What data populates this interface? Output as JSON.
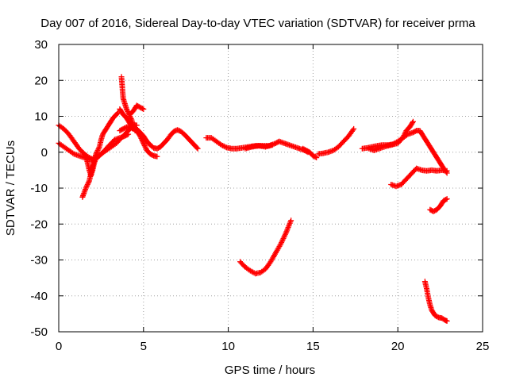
{
  "chart_data": {
    "type": "scatter",
    "title": "Day 007 of 2016, Sidereal Day-to-day VTEC variation (SDTVAR) for receiver prma",
    "xlabel": "GPS time / hours",
    "ylabel": "SDTVAR / TECUs",
    "xlim": [
      0,
      25
    ],
    "ylim": [
      -50,
      30
    ],
    "xticks": [
      "0",
      "5",
      "10",
      "15",
      "20",
      "25"
    ],
    "yticks": [
      "30",
      "20",
      "10",
      "0",
      "-10",
      "-20",
      "-30",
      "-40",
      "-50"
    ],
    "grid": true,
    "marker": "+",
    "color": "#ff0000",
    "series": [
      {
        "points": [
          [
            0.0,
            7.5
          ],
          [
            0.3,
            6.5
          ],
          [
            0.6,
            5.0
          ],
          [
            0.9,
            3.0
          ],
          [
            1.2,
            1.0
          ],
          [
            1.5,
            -0.5
          ],
          [
            1.8,
            -1.5
          ],
          [
            2.0,
            -2.0
          ],
          [
            2.2,
            -1.5
          ],
          [
            2.5,
            -0.5
          ],
          [
            2.8,
            0.5
          ],
          [
            3.1,
            1.5
          ],
          [
            3.4,
            2.5
          ],
          [
            3.7,
            4.0
          ],
          [
            4.0,
            5.5
          ],
          [
            4.2,
            6.5
          ],
          [
            4.4,
            7.5
          ],
          [
            4.6,
            7.5
          ]
        ]
      },
      {
        "points": [
          [
            0.0,
            2.5
          ],
          [
            0.3,
            1.5
          ],
          [
            0.6,
            0.5
          ],
          [
            0.9,
            -0.5
          ],
          [
            1.2,
            -1.0
          ],
          [
            1.5,
            -1.5
          ],
          [
            1.8,
            -2.0
          ],
          [
            2.1,
            -2.2
          ],
          [
            2.4,
            -1.0
          ],
          [
            2.7,
            0.5
          ],
          [
            3.0,
            2.0
          ],
          [
            3.3,
            3.5
          ],
          [
            3.6,
            4.0
          ],
          [
            3.9,
            4.5
          ],
          [
            4.1,
            5.0
          ]
        ]
      },
      {
        "points": [
          [
            1.4,
            0.0
          ],
          [
            1.6,
            -1.0
          ],
          [
            1.7,
            -3.0
          ],
          [
            1.8,
            -5.0
          ],
          [
            1.9,
            -6.5
          ],
          [
            2.0,
            -5.0
          ],
          [
            2.1,
            -3.0
          ],
          [
            2.2,
            -1.5
          ]
        ]
      },
      {
        "points": [
          [
            1.4,
            -12.5
          ],
          [
            1.6,
            -10.0
          ],
          [
            1.8,
            -8.0
          ],
          [
            1.9,
            -6.0
          ],
          [
            2.0,
            -4.0
          ],
          [
            2.1,
            -2.0
          ],
          [
            2.2,
            -0.5
          ]
        ]
      },
      {
        "points": [
          [
            2.2,
            -0.5
          ],
          [
            2.4,
            1.5
          ],
          [
            2.5,
            3.5
          ],
          [
            2.6,
            5.0
          ],
          [
            2.8,
            6.5
          ],
          [
            3.0,
            8.0
          ],
          [
            3.2,
            9.5
          ],
          [
            3.4,
            10.5
          ],
          [
            3.5,
            11.0
          ]
        ]
      },
      {
        "points": [
          [
            3.7,
            21.0
          ],
          [
            3.75,
            18.0
          ],
          [
            3.8,
            15.0
          ],
          [
            3.9,
            13.5
          ],
          [
            4.0,
            12.0
          ],
          [
            4.1,
            11.0
          ],
          [
            4.2,
            10.0
          ],
          [
            4.3,
            9.0
          ],
          [
            4.4,
            7.5
          ],
          [
            4.5,
            6.0
          ]
        ]
      },
      {
        "points": [
          [
            3.6,
            12.0
          ],
          [
            3.8,
            10.5
          ],
          [
            4.0,
            9.5
          ],
          [
            4.2,
            8.0
          ],
          [
            4.4,
            6.5
          ]
        ]
      },
      {
        "points": [
          [
            4.2,
            10.5
          ],
          [
            4.4,
            11.5
          ],
          [
            4.6,
            13.0
          ],
          [
            4.8,
            12.5
          ],
          [
            5.0,
            12.0
          ]
        ]
      },
      {
        "points": [
          [
            3.6,
            6.0
          ],
          [
            3.8,
            6.5
          ],
          [
            4.0,
            7.0
          ],
          [
            4.2,
            7.0
          ],
          [
            4.4,
            6.5
          ],
          [
            4.6,
            6.0
          ],
          [
            4.8,
            4.5
          ],
          [
            5.0,
            2.5
          ],
          [
            5.2,
            0.5
          ],
          [
            5.4,
            -0.5
          ],
          [
            5.6,
            -1.0
          ],
          [
            5.8,
            -1.2
          ]
        ]
      },
      {
        "points": [
          [
            4.6,
            6.5
          ],
          [
            4.8,
            5.5
          ],
          [
            5.0,
            4.5
          ],
          [
            5.2,
            3.0
          ],
          [
            5.4,
            2.0
          ],
          [
            5.6,
            1.2
          ],
          [
            5.8,
            1.0
          ],
          [
            6.0,
            1.5
          ],
          [
            6.2,
            2.5
          ],
          [
            6.4,
            3.5
          ],
          [
            6.6,
            4.8
          ],
          [
            6.8,
            5.8
          ],
          [
            7.0,
            6.2
          ],
          [
            7.2,
            5.8
          ],
          [
            7.4,
            5.0
          ],
          [
            7.6,
            4.0
          ],
          [
            7.8,
            3.0
          ],
          [
            8.0,
            2.0
          ],
          [
            8.2,
            1.0
          ]
        ]
      },
      {
        "points": [
          [
            8.7,
            4.0
          ],
          [
            9.0,
            4.0
          ],
          [
            9.3,
            3.0
          ],
          [
            9.6,
            2.0
          ],
          [
            9.9,
            1.3
          ],
          [
            10.2,
            1.0
          ],
          [
            10.5,
            1.0
          ],
          [
            10.8,
            1.2
          ],
          [
            11.2,
            1.5
          ],
          [
            11.6,
            1.8
          ],
          [
            12.0,
            1.8
          ],
          [
            12.4,
            1.8
          ],
          [
            12.8,
            2.5
          ],
          [
            13.0,
            3.0
          ],
          [
            13.3,
            2.5
          ],
          [
            13.6,
            2.0
          ],
          [
            13.9,
            1.5
          ],
          [
            14.2,
            1.0
          ],
          [
            14.5,
            0.5
          ],
          [
            14.7,
            0.0
          ]
        ]
      },
      {
        "points": [
          [
            11.0,
            1.0
          ],
          [
            11.4,
            1.5
          ],
          [
            11.8,
            1.8
          ],
          [
            12.2,
            1.5
          ],
          [
            12.6,
            2.0
          ]
        ]
      },
      {
        "points": [
          [
            14.4,
            1.0
          ],
          [
            14.6,
            0.5
          ],
          [
            14.8,
            0.0
          ],
          [
            15.0,
            -1.0
          ],
          [
            15.2,
            -1.5
          ]
        ]
      },
      {
        "points": [
          [
            15.3,
            -0.5
          ],
          [
            15.6,
            -0.3
          ],
          [
            15.9,
            0.0
          ],
          [
            16.2,
            0.5
          ],
          [
            16.5,
            1.5
          ],
          [
            16.8,
            3.0
          ],
          [
            17.1,
            4.5
          ],
          [
            17.4,
            6.5
          ]
        ]
      },
      {
        "points": [
          [
            10.7,
            -30.5
          ],
          [
            11.0,
            -32.0
          ],
          [
            11.3,
            -33.0
          ],
          [
            11.6,
            -33.8
          ],
          [
            11.9,
            -33.5
          ],
          [
            12.2,
            -32.5
          ],
          [
            12.5,
            -30.5
          ],
          [
            12.8,
            -28.0
          ],
          [
            13.1,
            -25.5
          ],
          [
            13.4,
            -22.5
          ],
          [
            13.7,
            -19.0
          ]
        ]
      },
      {
        "points": [
          [
            17.9,
            1.0
          ],
          [
            18.2,
            1.2
          ],
          [
            18.5,
            1.5
          ],
          [
            18.8,
            1.8
          ],
          [
            19.1,
            2.0
          ],
          [
            19.4,
            2.0
          ],
          [
            19.7,
            2.2
          ],
          [
            20.0,
            3.0
          ],
          [
            20.3,
            4.0
          ],
          [
            20.6,
            5.0
          ],
          [
            20.9,
            5.5
          ],
          [
            21.1,
            6.0
          ],
          [
            21.3,
            6.0
          ],
          [
            21.5,
            4.5
          ],
          [
            21.7,
            3.0
          ],
          [
            21.9,
            1.5
          ],
          [
            22.1,
            0.0
          ],
          [
            22.3,
            -1.5
          ],
          [
            22.5,
            -3.0
          ],
          [
            22.7,
            -4.5
          ],
          [
            22.9,
            -5.8
          ]
        ]
      },
      {
        "points": [
          [
            18.3,
            1.0
          ],
          [
            18.6,
            0.5
          ],
          [
            18.9,
            1.0
          ],
          [
            19.2,
            1.5
          ],
          [
            19.6,
            2.0
          ],
          [
            20.0,
            2.5
          ],
          [
            20.3,
            4.0
          ],
          [
            20.5,
            6.0
          ],
          [
            20.7,
            7.0
          ],
          [
            20.9,
            8.5
          ]
        ]
      },
      {
        "points": [
          [
            19.6,
            -9.0
          ],
          [
            19.9,
            -9.5
          ],
          [
            20.2,
            -9.0
          ],
          [
            20.5,
            -7.5
          ],
          [
            20.8,
            -6.0
          ],
          [
            21.1,
            -4.5
          ],
          [
            21.4,
            -5.0
          ],
          [
            21.7,
            -5.2
          ],
          [
            22.0,
            -5.0
          ],
          [
            22.3,
            -5.2
          ],
          [
            22.6,
            -5.0
          ],
          [
            22.9,
            -5.2
          ]
        ]
      },
      {
        "points": [
          [
            21.6,
            -36.0
          ],
          [
            21.7,
            -38.0
          ],
          [
            21.8,
            -40.5
          ],
          [
            21.9,
            -42.5
          ],
          [
            22.0,
            -44.0
          ],
          [
            22.2,
            -45.5
          ],
          [
            22.4,
            -46.0
          ],
          [
            22.6,
            -46.2
          ],
          [
            22.8,
            -46.8
          ],
          [
            22.9,
            -47.0
          ]
        ]
      },
      {
        "points": [
          [
            21.9,
            -16.0
          ],
          [
            22.1,
            -16.5
          ],
          [
            22.3,
            -16.0
          ],
          [
            22.5,
            -15.0
          ],
          [
            22.7,
            -13.5
          ],
          [
            22.9,
            -13.0
          ]
        ]
      }
    ]
  }
}
